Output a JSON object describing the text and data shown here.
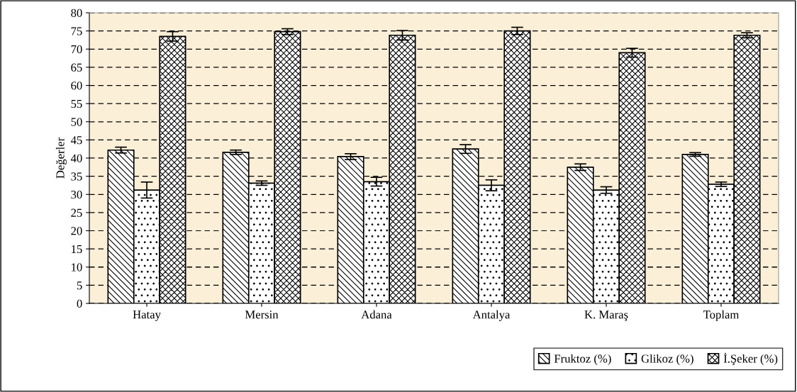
{
  "chart_data": {
    "type": "bar",
    "ylabel": "Değerler",
    "categories": [
      "Hatay",
      "Mersin",
      "Adana",
      "Antalya",
      "K. Maraş",
      "Toplam"
    ],
    "series": [
      {
        "name": "Fruktoz (%)",
        "color": "#000000",
        "values": [
          42.2,
          41.6,
          40.4,
          42.5,
          37.5,
          41.0
        ],
        "errors": [
          0.8,
          0.6,
          0.8,
          1.2,
          0.9,
          0.5
        ]
      },
      {
        "name": "Glikoz (%)",
        "color": "#000000",
        "values": [
          31.2,
          33.1,
          33.5,
          32.5,
          31.2,
          32.8
        ],
        "errors": [
          2.2,
          0.6,
          1.2,
          1.5,
          0.9,
          0.6
        ]
      },
      {
        "name": "İ.Şeker (%)",
        "color": "#000000",
        "values": [
          73.5,
          74.8,
          73.8,
          75.0,
          69.0,
          73.8
        ],
        "errors": [
          1.3,
          0.8,
          1.3,
          1.0,
          1.2,
          0.7
        ]
      }
    ],
    "ylim": [
      0,
      80
    ],
    "yticks": [
      0,
      5,
      10,
      15,
      20,
      25,
      30,
      35,
      40,
      45,
      50,
      55,
      60,
      65,
      70,
      75,
      80
    ],
    "grid": "y",
    "legend": "bottom right"
  }
}
